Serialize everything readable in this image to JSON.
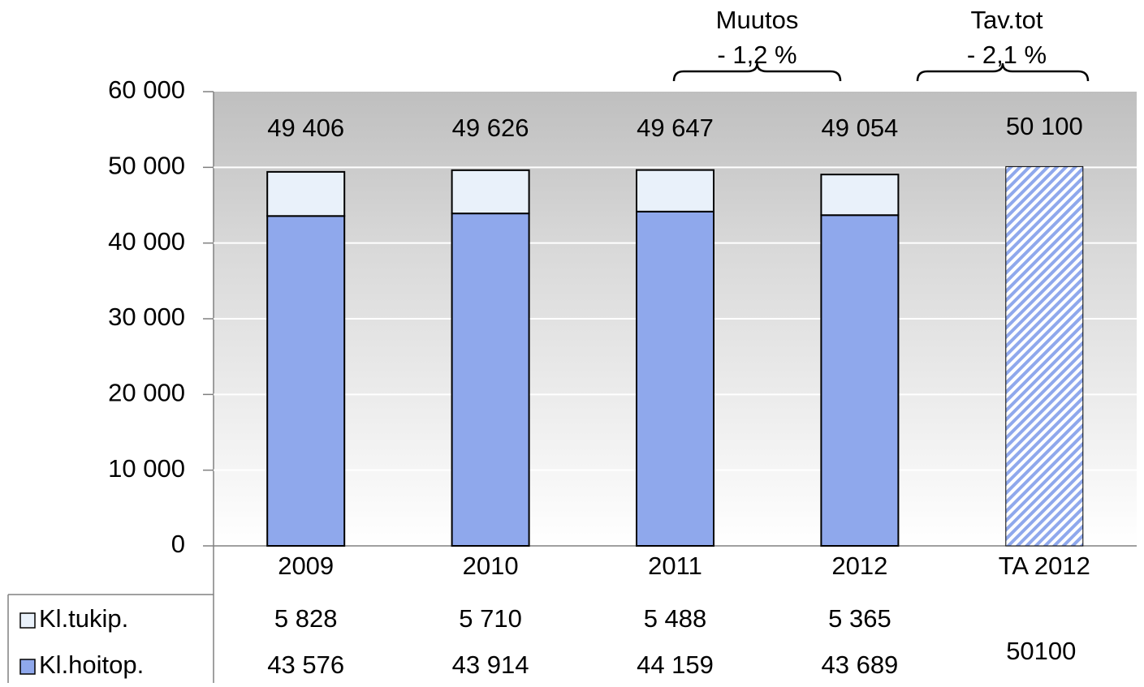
{
  "chart_data": {
    "type": "bar",
    "categories": [
      "2009",
      "2010",
      "2011",
      "2012",
      "TA 2012"
    ],
    "series": [
      {
        "name": "Kl.hoitop.",
        "color": "#8fa8ec",
        "values": [
          43576,
          43914,
          44159,
          43689,
          null
        ],
        "value_labels": [
          "43 576",
          "43 914",
          "44 159",
          "43 689",
          null
        ]
      },
      {
        "name": "Kl.tukip.",
        "color": "#e9f1fa",
        "values": [
          5828,
          5710,
          5488,
          5365,
          null
        ],
        "value_labels": [
          "5 828",
          "5 710",
          "5 488",
          "5 365",
          null
        ]
      }
    ],
    "budget": {
      "category": "TA 2012",
      "value": 50100,
      "value_label": "50100",
      "color": "#8fa8ec"
    },
    "totals": {
      "values": [
        49406,
        49626,
        49647,
        49054,
        50100
      ],
      "value_labels": [
        "49 406",
        "49 626",
        "49 647",
        "49 054",
        "50 100"
      ]
    },
    "annotations": [
      {
        "title": "Muutos",
        "text": "- 1,2 %"
      },
      {
        "title": "Tav.tot",
        "text": "- 2,1 %"
      }
    ],
    "ylim": [
      0,
      60000
    ],
    "yticks": [
      {
        "value": 0,
        "label": "0"
      },
      {
        "value": 10000,
        "label": "10 000"
      },
      {
        "value": 20000,
        "label": "20 000"
      },
      {
        "value": 30000,
        "label": "30 000"
      },
      {
        "value": 40000,
        "label": "40 000"
      },
      {
        "value": 50000,
        "label": "50 000"
      },
      {
        "value": 60000,
        "label": "60 000"
      }
    ],
    "grid": true
  }
}
